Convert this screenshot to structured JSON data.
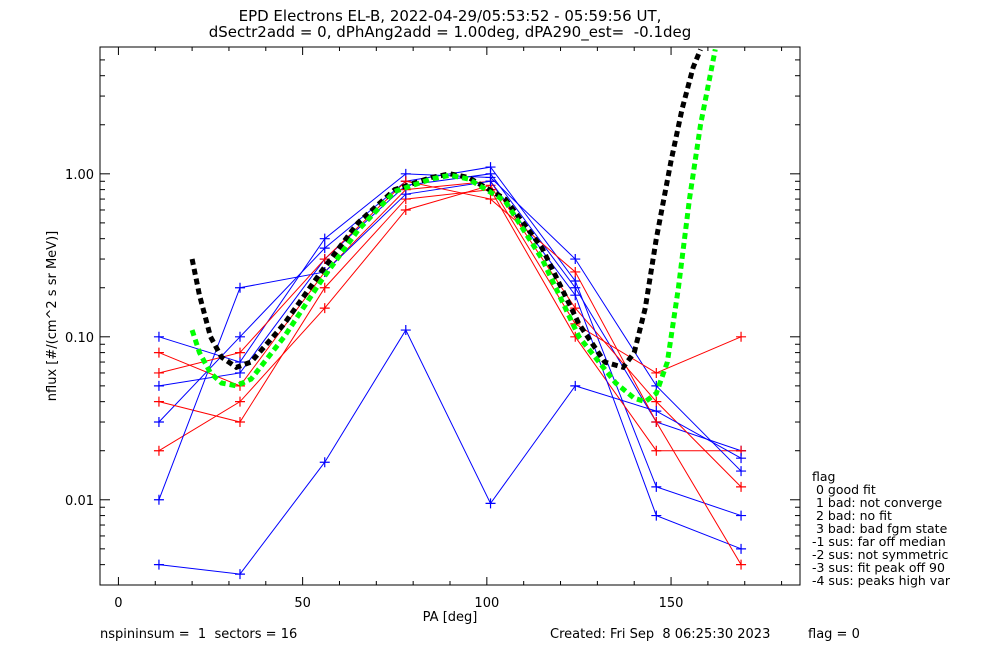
{
  "title": {
    "line1": "EPD Electrons EL-B, 2022-04-29/05:53:52 - 05:59:56 UT,",
    "line2": "dSectr2add = 0, dPhAng2add = 1.00deg, dPA290_est=  -0.1deg"
  },
  "footer": {
    "left": "nspininsum =  1  sectors = 16",
    "center": "Created: Fri Sep  8 06:25:30 2023",
    "right": "flag = 0"
  },
  "flag_legend": {
    "title": "flag",
    "items": [
      " 0 good fit",
      " 1 bad: not converge",
      " 2 bad: no fit",
      " 3 bad: bad fgm state",
      "-1 sus: far off median",
      "-2 sus: not symmetric",
      "-3 sus: fit peak off 90",
      "-4 sus: peaks high var"
    ]
  },
  "colors": {
    "series_red": "#ff0000",
    "series_blue": "#0000ff",
    "fit_black": "#000000",
    "fit_green": "#00ff00"
  },
  "chart_data": {
    "type": "line",
    "xlabel": "PA [deg]",
    "ylabel": "nflux [#/(cm^2 s sr MeV)]",
    "xlim": [
      -5,
      185
    ],
    "ylim": [
      0.003,
      6
    ],
    "yscale": "log",
    "x_ticks": [
      0,
      50,
      100,
      150
    ],
    "x_tick_labels": [
      "0",
      "50",
      "100",
      "150"
    ],
    "y_ticks": [
      0.01,
      0.1,
      1.0
    ],
    "y_tick_labels": [
      "0.01",
      "0.10",
      "1.00"
    ],
    "grid": false,
    "pa_bins": [
      11,
      33,
      56,
      78,
      101,
      124,
      146,
      169
    ],
    "sample_spectra": [
      {
        "color": "blue",
        "values": [
          0.05,
          0.06,
          0.3,
          0.85,
          1.0,
          0.2,
          0.03,
          0.02
        ]
      },
      {
        "color": "red",
        "values": [
          0.08,
          0.05,
          0.25,
          0.8,
          0.9,
          0.15,
          0.04,
          0.012
        ]
      },
      {
        "color": "blue",
        "values": [
          0.03,
          0.1,
          0.35,
          0.9,
          1.1,
          0.22,
          0.012,
          0.008
        ]
      },
      {
        "color": "red",
        "values": [
          0.04,
          0.03,
          0.2,
          0.7,
          0.8,
          0.1,
          0.02,
          0.02
        ]
      },
      {
        "color": "blue",
        "values": [
          0.1,
          0.07,
          0.4,
          1.0,
          0.95,
          0.3,
          0.05,
          0.015
        ]
      },
      {
        "color": "red",
        "values": [
          0.02,
          0.04,
          0.15,
          0.6,
          0.85,
          0.12,
          0.06,
          0.1
        ]
      },
      {
        "color": "blue",
        "values": [
          0.01,
          0.2,
          0.25,
          0.75,
          0.9,
          0.18,
          0.008,
          0.005
        ]
      },
      {
        "color": "red",
        "values": [
          0.06,
          0.08,
          0.3,
          0.9,
          0.7,
          0.25,
          0.03,
          0.004
        ]
      },
      {
        "color": "blue",
        "values": [
          0.004,
          0.0035,
          0.017,
          0.11,
          0.0095,
          0.05,
          0.035,
          0.018
        ]
      }
    ],
    "fits": [
      {
        "color": "black",
        "x": [
          20,
          22,
          25,
          28,
          32,
          36,
          45,
          55,
          65,
          75,
          85,
          90,
          95,
          105,
          115,
          125,
          132,
          137,
          140,
          143,
          146,
          150,
          153,
          156,
          158
        ],
        "y": [
          0.3,
          0.18,
          0.1,
          0.075,
          0.065,
          0.07,
          0.12,
          0.25,
          0.5,
          0.8,
          0.95,
          1.0,
          0.95,
          0.7,
          0.35,
          0.12,
          0.07,
          0.065,
          0.08,
          0.15,
          0.4,
          1.2,
          2.5,
          4.5,
          5.8
        ]
      },
      {
        "color": "green",
        "x": [
          20,
          22,
          25,
          28,
          32,
          36,
          45,
          55,
          65,
          75,
          85,
          90,
          95,
          105,
          115,
          125,
          135,
          140,
          143,
          146,
          149,
          152,
          155,
          158,
          162
        ],
        "y": [
          0.11,
          0.08,
          0.06,
          0.052,
          0.05,
          0.055,
          0.1,
          0.22,
          0.45,
          0.78,
          0.93,
          0.98,
          0.93,
          0.68,
          0.3,
          0.1,
          0.052,
          0.042,
          0.04,
          0.045,
          0.07,
          0.2,
          0.7,
          2.0,
          5.8
        ]
      }
    ]
  }
}
